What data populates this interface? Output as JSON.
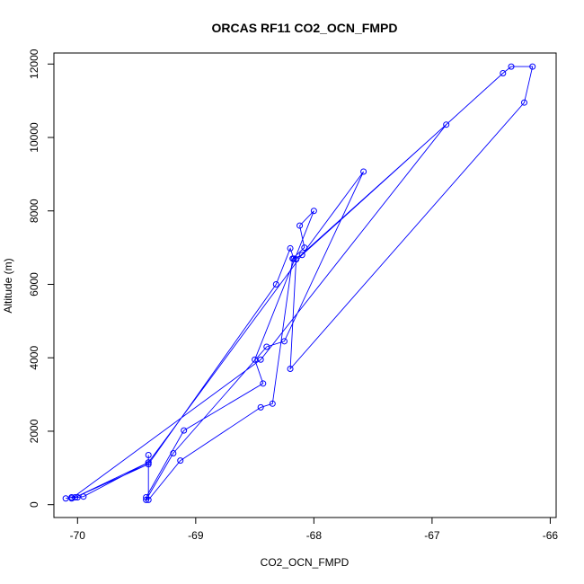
{
  "chart_data": {
    "type": "line",
    "title": "ORCAS RF11 CO2_OCN_FMPD",
    "xlabel": "CO2_OCN_FMPD",
    "ylabel": "Altitude (m)",
    "xlim": [
      -70.2,
      -65.95
    ],
    "ylim": [
      -350,
      12300
    ],
    "x_ticks": [
      -70,
      -69,
      -68,
      -67,
      -66
    ],
    "x_tick_labels": [
      "-70",
      "-69",
      "-68",
      "-67",
      "-66"
    ],
    "y_ticks": [
      0,
      2000,
      4000,
      6000,
      8000,
      10000,
      12000
    ],
    "y_tick_labels": [
      "0",
      "2000",
      "4000",
      "6000",
      "8000",
      "10000",
      "12000"
    ],
    "grid": false,
    "series": [
      {
        "color": "#0000ff",
        "marker": "circle-open",
        "x": [
          -70.1,
          -70.05,
          -70.0,
          -69.95,
          -69.4,
          -69.4,
          -69.4,
          -69.13,
          -68.45,
          -68.35,
          -68.18,
          -68.08,
          -68.12,
          -68.0,
          -68.5,
          -68.43,
          -69.1,
          -69.42,
          -69.42,
          -69.19,
          -68.4,
          -68.25,
          -67.58,
          -69.4,
          -70.02,
          -69.4,
          -68.32,
          -68.2,
          -68.17,
          -68.1,
          -66.4,
          -66.33,
          -66.15,
          -66.22,
          -68.2,
          -68.15,
          -66.88,
          -68.45,
          -70.05
        ],
        "y": [
          170,
          200,
          200,
          220,
          1150,
          1350,
          130,
          1200,
          2650,
          2750,
          6700,
          7000,
          7600,
          8000,
          3950,
          3300,
          2020,
          200,
          130,
          1400,
          4300,
          4450,
          9070,
          1150,
          200,
          1100,
          6000,
          6980,
          6700,
          6800,
          11750,
          11930,
          11930,
          10950,
          3700,
          6680,
          10350,
          3950,
          170
        ]
      }
    ]
  }
}
